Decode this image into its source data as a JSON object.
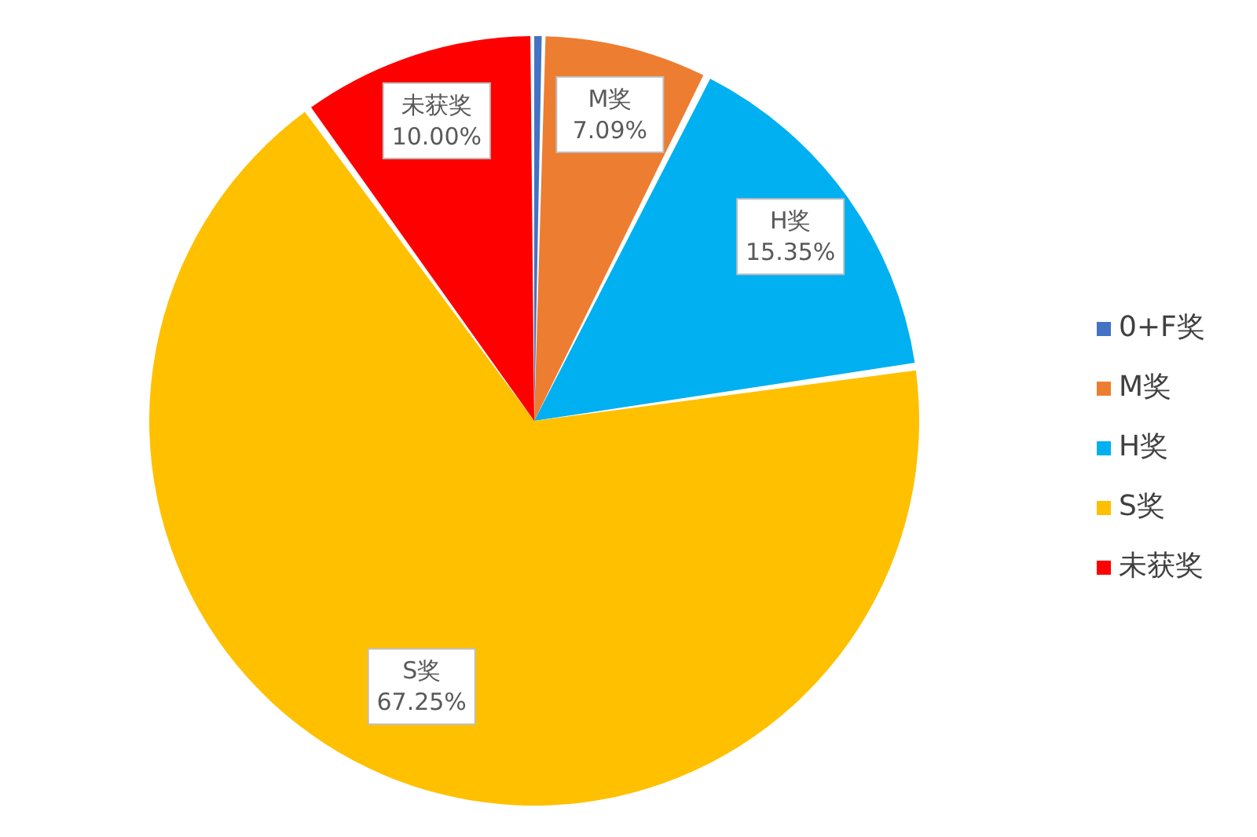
{
  "chart_data": {
    "type": "pie",
    "categories": [
      "0+F奖",
      "M奖",
      "H奖",
      "S奖",
      "未获奖"
    ],
    "values": [
      0.31,
      7.09,
      15.35,
      67.25,
      10.0
    ],
    "colors": [
      "#4472c4",
      "#ed7d31",
      "#00b0f0",
      "#ffc000",
      "#ff0000"
    ],
    "value_labels": [
      null,
      "7.09%",
      "15.35%",
      "67.25%",
      "10.00%"
    ],
    "legend": "right"
  }
}
